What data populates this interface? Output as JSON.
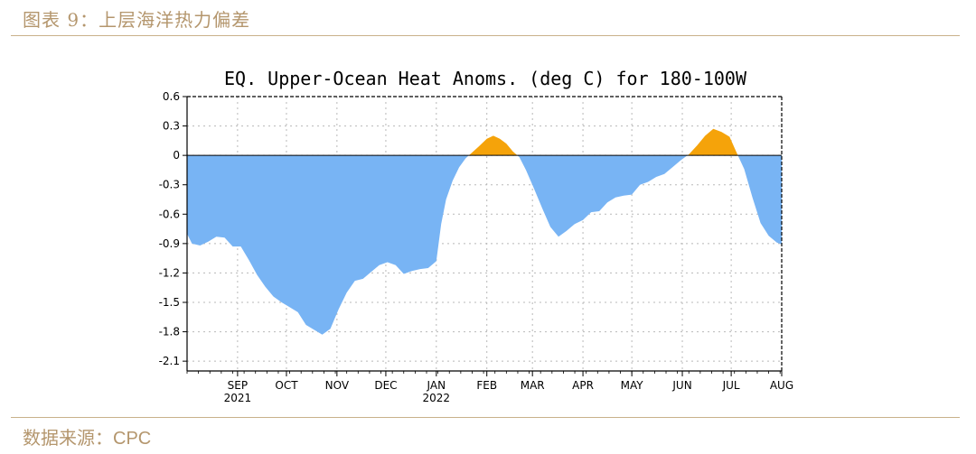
{
  "figure_caption": "图表 9：上层海洋热力偏差",
  "source_prefix": "数据来源：",
  "source_name": "CPC",
  "colors": {
    "negative": "#78b4f4",
    "positive": "#f5a30a",
    "caption": "#b4966d",
    "rule": "#c9b18a"
  },
  "chart_data": {
    "type": "area",
    "title": "EQ. Upper-Ocean Heat Anoms. (deg C) for 180-100W",
    "xlabel": "",
    "ylabel": "",
    "ylim": [
      -2.2,
      0.6
    ],
    "yticks": [
      0.6,
      0.3,
      0,
      -0.3,
      -0.6,
      -0.9,
      -1.2,
      -1.5,
      -1.8,
      -2.1
    ],
    "ytick_labels": [
      "0.6",
      "0.3",
      "0",
      "-0.3",
      "-0.6",
      "-0.9",
      "-1.2",
      "-1.5",
      "-1.8",
      "-2.1"
    ],
    "xlim": [
      "2021-08-01",
      "2022-08-01"
    ],
    "x_month_ticks": [
      {
        "date": "2021-09-01",
        "label": "SEP",
        "year": "2021"
      },
      {
        "date": "2021-10-01",
        "label": "OCT",
        "year": ""
      },
      {
        "date": "2021-11-01",
        "label": "NOV",
        "year": ""
      },
      {
        "date": "2021-12-01",
        "label": "DEC",
        "year": ""
      },
      {
        "date": "2022-01-01",
        "label": "JAN",
        "year": "2022"
      },
      {
        "date": "2022-02-01",
        "label": "FEB",
        "year": ""
      },
      {
        "date": "2022-03-01",
        "label": "MAR",
        "year": ""
      },
      {
        "date": "2022-04-01",
        "label": "APR",
        "year": ""
      },
      {
        "date": "2022-05-01",
        "label": "MAY",
        "year": ""
      },
      {
        "date": "2022-06-01",
        "label": "JUN",
        "year": ""
      },
      {
        "date": "2022-07-01",
        "label": "JUL",
        "year": ""
      },
      {
        "date": "2022-08-01",
        "label": "AUG",
        "year": ""
      }
    ],
    "grid": true,
    "series": [
      {
        "points": [
          [
            "2021-08-01",
            -0.8
          ],
          [
            "2021-08-04",
            -0.9
          ],
          [
            "2021-08-09",
            -0.92
          ],
          [
            "2021-08-14",
            -0.88
          ],
          [
            "2021-08-19",
            -0.83
          ],
          [
            "2021-08-24",
            -0.84
          ],
          [
            "2021-08-29",
            -0.93
          ],
          [
            "2021-09-03",
            -0.93
          ],
          [
            "2021-09-08",
            -1.07
          ],
          [
            "2021-09-13",
            -1.22
          ],
          [
            "2021-09-18",
            -1.34
          ],
          [
            "2021-09-23",
            -1.44
          ],
          [
            "2021-09-28",
            -1.5
          ],
          [
            "2021-10-03",
            -1.55
          ],
          [
            "2021-10-08",
            -1.6
          ],
          [
            "2021-10-13",
            -1.73
          ],
          [
            "2021-10-18",
            -1.78
          ],
          [
            "2021-10-23",
            -1.83
          ],
          [
            "2021-10-28",
            -1.77
          ],
          [
            "2021-11-02",
            -1.57
          ],
          [
            "2021-11-07",
            -1.4
          ],
          [
            "2021-11-12",
            -1.28
          ],
          [
            "2021-11-17",
            -1.26
          ],
          [
            "2021-11-22",
            -1.19
          ],
          [
            "2021-11-27",
            -1.12
          ],
          [
            "2021-12-02",
            -1.09
          ],
          [
            "2021-12-07",
            -1.12
          ],
          [
            "2021-12-12",
            -1.21
          ],
          [
            "2021-12-17",
            -1.18
          ],
          [
            "2021-12-22",
            -1.16
          ],
          [
            "2021-12-27",
            -1.15
          ],
          [
            "2022-01-01",
            -1.08
          ],
          [
            "2022-01-04",
            -0.7
          ],
          [
            "2022-01-07",
            -0.45
          ],
          [
            "2022-01-11",
            -0.26
          ],
          [
            "2022-01-15",
            -0.12
          ],
          [
            "2022-01-19",
            -0.03
          ],
          [
            "2022-01-23",
            0.03
          ],
          [
            "2022-01-27",
            0.09
          ],
          [
            "2022-02-01",
            0.17
          ],
          [
            "2022-02-05",
            0.2
          ],
          [
            "2022-02-09",
            0.17
          ],
          [
            "2022-02-13",
            0.12
          ],
          [
            "2022-02-17",
            0.04
          ],
          [
            "2022-02-21",
            -0.02
          ],
          [
            "2022-02-25",
            -0.15
          ],
          [
            "2022-03-02",
            -0.34
          ],
          [
            "2022-03-07",
            -0.54
          ],
          [
            "2022-03-12",
            -0.73
          ],
          [
            "2022-03-17",
            -0.83
          ],
          [
            "2022-03-22",
            -0.77
          ],
          [
            "2022-03-27",
            -0.7
          ],
          [
            "2022-04-01",
            -0.66
          ],
          [
            "2022-04-06",
            -0.58
          ],
          [
            "2022-04-11",
            -0.57
          ],
          [
            "2022-04-16",
            -0.48
          ],
          [
            "2022-04-21",
            -0.43
          ],
          [
            "2022-04-26",
            -0.41
          ],
          [
            "2022-05-01",
            -0.4
          ],
          [
            "2022-05-06",
            -0.3
          ],
          [
            "2022-05-11",
            -0.27
          ],
          [
            "2022-05-16",
            -0.22
          ],
          [
            "2022-05-21",
            -0.19
          ],
          [
            "2022-05-26",
            -0.12
          ],
          [
            "2022-05-31",
            -0.05
          ],
          [
            "2022-06-05",
            0.01
          ],
          [
            "2022-06-10",
            0.1
          ],
          [
            "2022-06-15",
            0.2
          ],
          [
            "2022-06-20",
            0.27
          ],
          [
            "2022-06-25",
            0.24
          ],
          [
            "2022-06-30",
            0.19
          ],
          [
            "2022-07-04",
            0.04
          ],
          [
            "2022-07-09",
            -0.14
          ],
          [
            "2022-07-14",
            -0.43
          ],
          [
            "2022-07-19",
            -0.69
          ],
          [
            "2022-07-24",
            -0.82
          ],
          [
            "2022-07-29",
            -0.89
          ],
          [
            "2022-08-01",
            -0.91
          ]
        ]
      }
    ]
  }
}
